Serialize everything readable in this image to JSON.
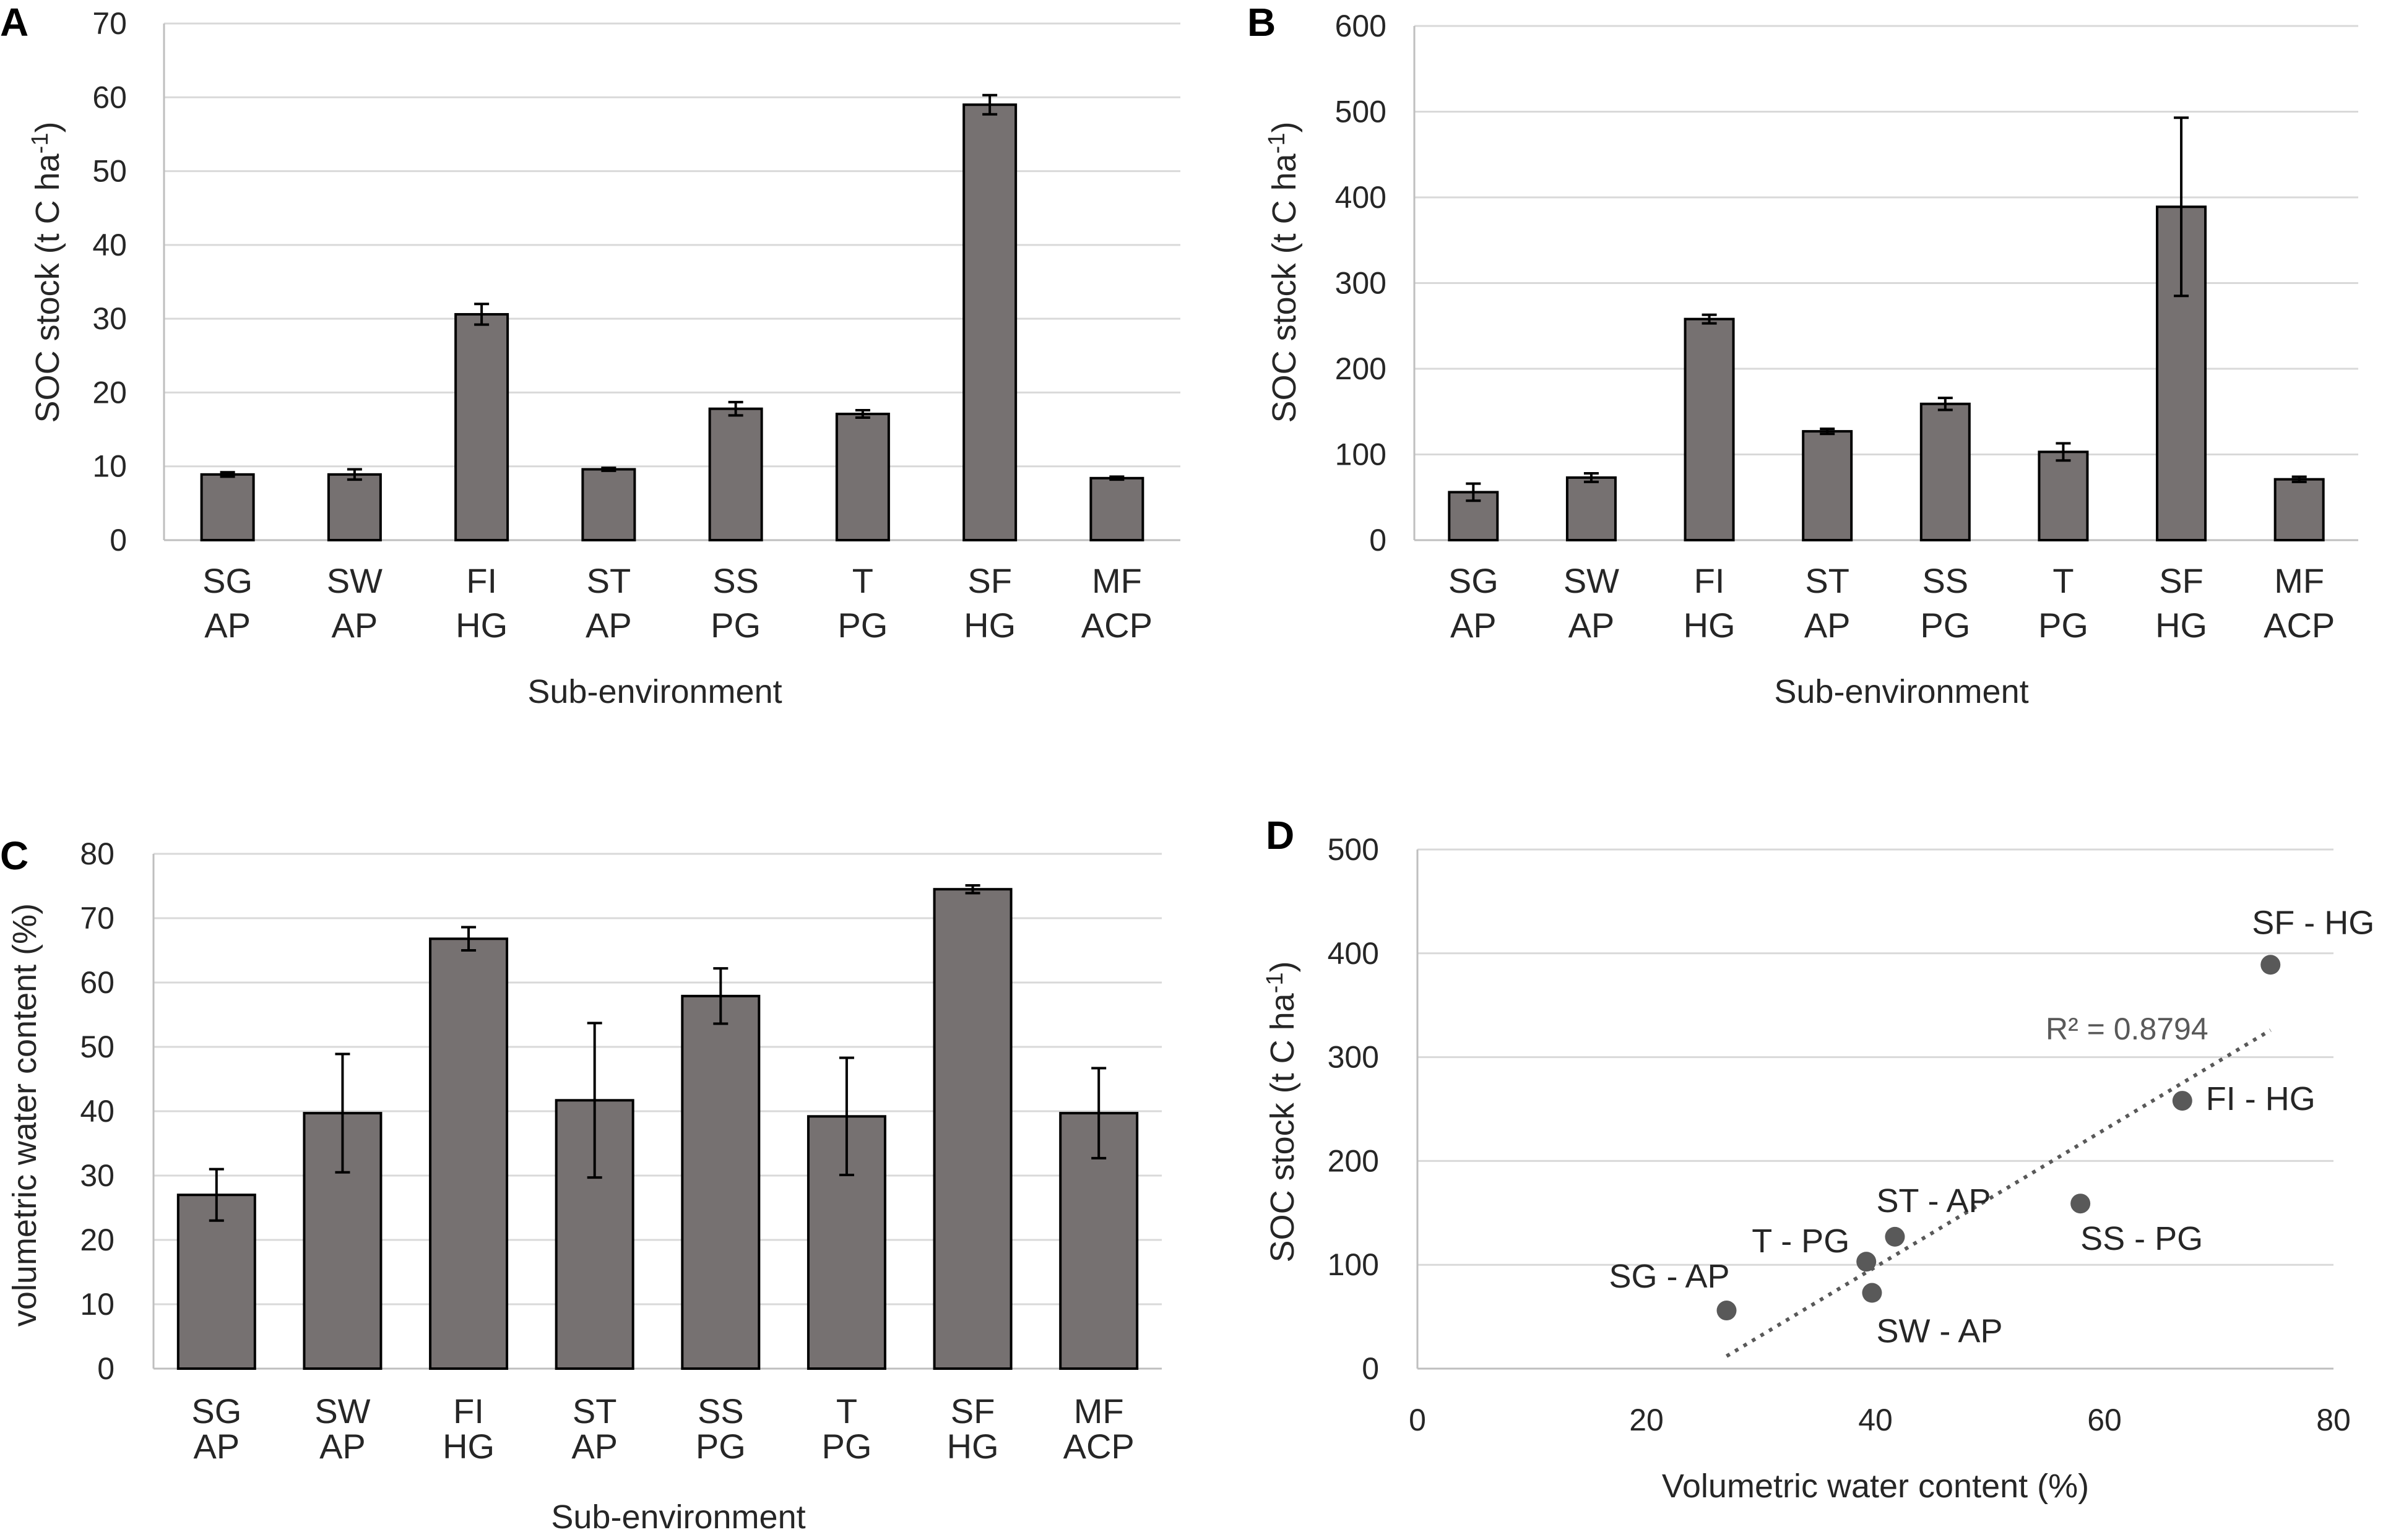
{
  "chart_data": [
    {
      "panel": "A",
      "type": "bar",
      "title": "",
      "xlabel": "Sub-environment",
      "ylabel": "SOC stock (t C ha-1)",
      "ylabel_main": "SOC stock (t C ha",
      "ylabel_sup": "-1",
      "ylabel_end": ")",
      "ylim": [
        0,
        70
      ],
      "yticks": [
        0,
        10,
        20,
        30,
        40,
        50,
        60,
        70
      ],
      "categories": [
        [
          "SG",
          "AP"
        ],
        [
          "SW",
          "AP"
        ],
        [
          "FI",
          "HG"
        ],
        [
          "ST",
          "AP"
        ],
        [
          "SS",
          "PG"
        ],
        [
          "T",
          "PG"
        ],
        [
          "SF",
          "HG"
        ],
        [
          "MF",
          "ACP"
        ]
      ],
      "values": [
        8.9,
        8.9,
        30.6,
        9.6,
        17.8,
        17.1,
        59.0,
        8.4
      ],
      "errors": [
        0.3,
        0.7,
        1.4,
        0.2,
        0.9,
        0.5,
        1.3,
        0.2
      ]
    },
    {
      "panel": "B",
      "type": "bar",
      "title": "",
      "xlabel": "Sub-environment",
      "ylabel": "SOC stock (t C ha-1)",
      "ylabel_main": "SOC stock (t C ha",
      "ylabel_sup": "-1",
      "ylabel_end": ")",
      "ylim": [
        0,
        600
      ],
      "yticks": [
        0,
        100,
        200,
        300,
        400,
        500,
        600
      ],
      "categories": [
        [
          "SG",
          "AP"
        ],
        [
          "SW",
          "AP"
        ],
        [
          "FI",
          "HG"
        ],
        [
          "ST",
          "AP"
        ],
        [
          "SS",
          "PG"
        ],
        [
          "T",
          "PG"
        ],
        [
          "SF",
          "HG"
        ],
        [
          "MF",
          "ACP"
        ]
      ],
      "values": [
        56,
        73,
        258,
        127,
        159,
        103,
        389,
        71
      ],
      "errors": [
        10,
        5,
        5,
        3,
        7,
        10,
        104,
        3
      ]
    },
    {
      "panel": "C",
      "type": "bar",
      "title": "",
      "xlabel": "Sub-environment",
      "ylabel": "volumetric water content (%)",
      "ylim": [
        0,
        80
      ],
      "yticks": [
        0,
        10,
        20,
        30,
        40,
        50,
        60,
        70,
        80
      ],
      "categories": [
        [
          "SG",
          "AP"
        ],
        [
          "SW",
          "AP"
        ],
        [
          "FI",
          "HG"
        ],
        [
          "ST",
          "AP"
        ],
        [
          "SS",
          "PG"
        ],
        [
          "T",
          "PG"
        ],
        [
          "SF",
          "HG"
        ],
        [
          "MF",
          "ACP"
        ]
      ],
      "values": [
        27.0,
        39.7,
        66.8,
        41.7,
        57.9,
        39.2,
        74.5,
        39.7
      ],
      "errors": [
        4.0,
        9.2,
        1.8,
        12.0,
        4.3,
        9.1,
        0.6,
        7.0
      ]
    },
    {
      "panel": "D",
      "type": "scatter",
      "title": "",
      "xlabel": "Volumetric water content (%)",
      "ylabel": "SOC stock (t C ha-1)",
      "ylabel_main": "SOC stock (t C ha",
      "ylabel_sup": "-1",
      "ylabel_end": ")",
      "xlim": [
        0,
        80
      ],
      "ylim": [
        0,
        500
      ],
      "xticks": [
        0,
        20,
        40,
        60,
        80
      ],
      "yticks": [
        0,
        100,
        200,
        300,
        400,
        500
      ],
      "points": [
        {
          "label": "SG - AP",
          "x": 27.0,
          "y": 56
        },
        {
          "label": "SW - AP",
          "x": 39.7,
          "y": 73
        },
        {
          "label": "FI - HG",
          "x": 66.8,
          "y": 258
        },
        {
          "label": "ST - AP",
          "x": 41.7,
          "y": 127
        },
        {
          "label": "SS - PG",
          "x": 57.9,
          "y": 159
        },
        {
          "label": "T - PG",
          "x": 39.2,
          "y": 103
        },
        {
          "label": "SF - HG",
          "x": 74.5,
          "y": 389
        }
      ],
      "trendline": {
        "type": "linear",
        "x_range": [
          27.0,
          74.5
        ],
        "y_start": 12,
        "y_end": 326,
        "r2_text": "R² = 0.8794"
      }
    }
  ]
}
